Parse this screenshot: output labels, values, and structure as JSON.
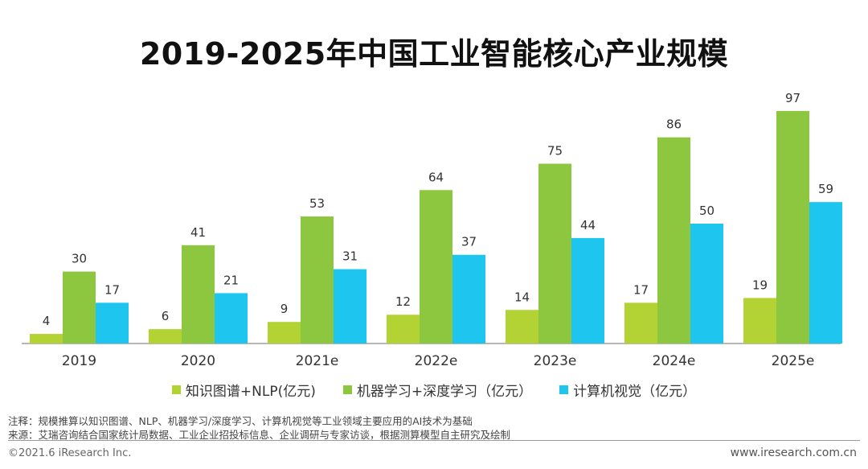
{
  "title": "2019-2025年中国工业智能核心产业规模",
  "colors": {
    "series0": "#b3d335",
    "series1": "#8dc63f",
    "series2": "#1ec5ef",
    "axis": "#8c8c8c"
  },
  "chart_data": {
    "type": "bar",
    "title": "2019-2025年中国工业智能核心产业规模",
    "categories": [
      "2019",
      "2020",
      "2021e",
      "2022e",
      "2023e",
      "2024e",
      "2025e"
    ],
    "series": [
      {
        "name": "知识图谱+NLP(亿元)",
        "values": [
          4,
          6,
          9,
          12,
          14,
          17,
          19
        ]
      },
      {
        "name": "机器学习+深度学习（亿元）",
        "values": [
          30,
          41,
          53,
          64,
          75,
          86,
          97
        ]
      },
      {
        "name": "计算机视觉（亿元）",
        "values": [
          17,
          21,
          31,
          37,
          44,
          50,
          59
        ]
      }
    ],
    "xlabel": "",
    "ylabel": "",
    "ylim": [
      0,
      100
    ],
    "grid": false,
    "legend": "bottom"
  },
  "notes": {
    "note1": "注释：规模推算以知识图谱、NLP、机器学习/深度学习、计算机视觉等工业领域主要应用的AI技术为基础",
    "note2": "来源：艾瑞咨询结合国家统计局数据、工业企业招投标信息、企业调研与专家访谈，根据测算模型自主研究及绘制"
  },
  "footer": {
    "copyright": "©2021.6 iResearch Inc.",
    "website": "www.iresearch.com.cn"
  }
}
